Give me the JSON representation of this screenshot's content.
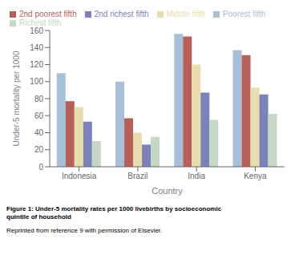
{
  "chart_data": {
    "type": "bar",
    "title": "Figure 1: Under-5 mortality rates per 1000 livebirths by socioeconomic\nquintile of household",
    "subtitle": "Reprinted from reference 9 with permission of Elsevier.",
    "xlabel": "Country",
    "ylabel": "Under-5 mortality per 1000",
    "categories": [
      "Indonesia",
      "Brazil",
      "India",
      "Kenya"
    ],
    "series": [
      {
        "name": "Poorest fifth",
        "color": "#a8bfd8",
        "values": [
          110,
          100,
          156,
          137
        ]
      },
      {
        "name": "2nd poorest fifth",
        "color": "#b5615a",
        "values": [
          77,
          57,
          153,
          131
        ]
      },
      {
        "name": "Middle fifth",
        "color": "#e8ddb0",
        "values": [
          70,
          40,
          120,
          93
        ]
      },
      {
        "name": "2nd richest fifth",
        "color": "#7b82b8",
        "values": [
          53,
          26,
          87,
          85
        ]
      },
      {
        "name": "Richest fifth",
        "color": "#c5d8c5",
        "values": [
          30,
          35,
          55,
          62
        ]
      }
    ],
    "ylim": [
      0,
      160
    ],
    "yticks": [
      0,
      20,
      40,
      60,
      80,
      100,
      120,
      140,
      160
    ],
    "legend": "upper left"
  }
}
